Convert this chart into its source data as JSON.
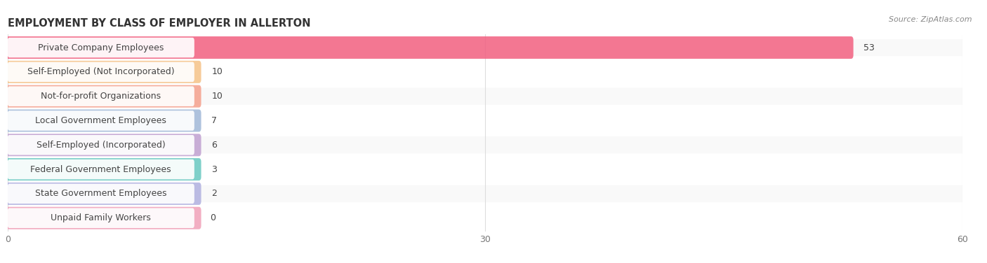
{
  "title": "EMPLOYMENT BY CLASS OF EMPLOYER IN ALLERTON",
  "source": "Source: ZipAtlas.com",
  "categories": [
    "Private Company Employees",
    "Self-Employed (Not Incorporated)",
    "Not-for-profit Organizations",
    "Local Government Employees",
    "Self-Employed (Incorporated)",
    "Federal Government Employees",
    "State Government Employees",
    "Unpaid Family Workers"
  ],
  "values": [
    53,
    10,
    10,
    7,
    6,
    3,
    2,
    0
  ],
  "bar_colors": [
    "#f26080",
    "#f5c287",
    "#f5a08c",
    "#a0b8d8",
    "#c0a0d0",
    "#68c8c0",
    "#b0b0e0",
    "#f0a0b8"
  ],
  "label_bg_color": "#ffffff",
  "row_bg_even": "#f9f9f9",
  "row_bg_odd": "#ffffff",
  "xlim_max": 60,
  "xticks": [
    0,
    30,
    60
  ],
  "title_fontsize": 10.5,
  "label_fontsize": 9,
  "value_fontsize": 9,
  "background_color": "#ffffff",
  "grid_color": "#dddddd",
  "text_color": "#444444",
  "source_color": "#888888"
}
